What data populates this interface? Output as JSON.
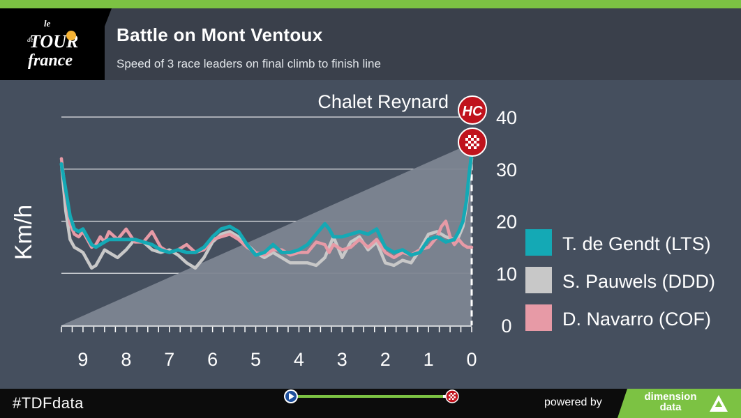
{
  "header": {
    "title": "Battle on Mont Ventoux",
    "subtitle": "Speed of 3 race leaders on final climb to finish line",
    "logo_text": "le Tour de France"
  },
  "footer": {
    "hashtag": "#TDFdata",
    "powered_by": "powered by",
    "brand_line1": "dimension",
    "brand_line2": "data"
  },
  "colors": {
    "accent_green": "#7cc243",
    "teal": "#14a9b5",
    "grey": "#c8c8c8",
    "pink": "#e79aa6",
    "elevation": "#7d8591",
    "marker_red": "#c0131d"
  },
  "chart_data": {
    "type": "line",
    "title": "Battle on Mont Ventoux",
    "ylabel": "Km/h",
    "xlabel": "",
    "xlim": [
      9.5,
      0
    ],
    "ylim": [
      0,
      40
    ],
    "x_ticks": [
      9,
      8,
      7,
      6,
      5,
      4,
      3,
      2,
      1,
      0
    ],
    "y_ticks": [
      0,
      10,
      20,
      30,
      40
    ],
    "grid": true,
    "legend_position": "right",
    "annotation": "Chalet Reynard",
    "markers": [
      "HC",
      "finish"
    ],
    "elevation_profile": {
      "x": [
        9.5,
        0
      ],
      "y": [
        0,
        35
      ]
    },
    "series": [
      {
        "name": "T. de Gendt (LTS)",
        "color": "#14a9b5",
        "x": [
          9.5,
          9.4,
          9.3,
          9.2,
          9.1,
          9.0,
          8.9,
          8.8,
          8.7,
          8.6,
          8.5,
          8.4,
          8.2,
          8.0,
          7.8,
          7.6,
          7.4,
          7.2,
          7.0,
          6.8,
          6.6,
          6.4,
          6.2,
          6.0,
          5.8,
          5.6,
          5.4,
          5.2,
          5.0,
          4.8,
          4.6,
          4.4,
          4.2,
          4.0,
          3.8,
          3.6,
          3.4,
          3.3,
          3.2,
          3.0,
          2.8,
          2.6,
          2.4,
          2.2,
          2.0,
          1.8,
          1.6,
          1.4,
          1.2,
          1.0,
          0.8,
          0.6,
          0.4,
          0.3,
          0.2,
          0.12,
          0.06,
          0
        ],
        "y": [
          31,
          26,
          21,
          18.5,
          18,
          18.5,
          17,
          15.5,
          15,
          15.5,
          16,
          16.5,
          16.5,
          16.5,
          16.5,
          16,
          15.5,
          14.5,
          14,
          14.5,
          14,
          14,
          15,
          17,
          18.5,
          19,
          18,
          15.5,
          13.5,
          14,
          15.5,
          14,
          14,
          14.5,
          15.5,
          17.5,
          19.5,
          18.5,
          17,
          17,
          17.5,
          18,
          17.5,
          18.5,
          15,
          14,
          14.5,
          13.5,
          14,
          16.5,
          17,
          16,
          16.5,
          18,
          20,
          24,
          29,
          33
        ]
      },
      {
        "name": "S. Pauwels (DDD)",
        "color": "#c8c8c8",
        "x": [
          9.5,
          9.4,
          9.3,
          9.2,
          9.1,
          9.0,
          8.9,
          8.8,
          8.7,
          8.6,
          8.5,
          8.4,
          8.2,
          8.0,
          7.8,
          7.6,
          7.4,
          7.2,
          7.0,
          6.8,
          6.6,
          6.4,
          6.2,
          6.0,
          5.8,
          5.6,
          5.4,
          5.2,
          5.0,
          4.8,
          4.6,
          4.4,
          4.2,
          4.0,
          3.8,
          3.6,
          3.4,
          3.3,
          3.2,
          3.0,
          2.8,
          2.6,
          2.4,
          2.2,
          2.0,
          1.8,
          1.6,
          1.4,
          1.2,
          1.0,
          0.8,
          0.6,
          0.4,
          0.3,
          0.2,
          0.12,
          0.06,
          0
        ],
        "y": [
          31,
          22,
          16.5,
          15,
          14.5,
          14,
          12.5,
          11,
          11.5,
          13,
          14.5,
          14,
          13,
          14.5,
          16.5,
          16,
          14.5,
          14,
          14.5,
          13.5,
          12,
          11,
          13,
          16,
          17.5,
          18,
          17,
          15.5,
          14,
          13,
          14,
          13,
          12,
          12,
          12,
          11.5,
          13,
          15,
          17,
          13,
          16,
          17,
          14.5,
          16,
          12,
          11.5,
          12.5,
          12,
          14.5,
          17.5,
          18,
          17,
          16.5,
          17,
          19,
          23,
          28,
          32
        ]
      },
      {
        "name": "D. Navarro (COF)",
        "color": "#e79aa6",
        "x": [
          9.5,
          9.4,
          9.3,
          9.2,
          9.1,
          9.0,
          8.9,
          8.8,
          8.7,
          8.6,
          8.5,
          8.4,
          8.2,
          8.0,
          7.8,
          7.6,
          7.4,
          7.2,
          7.0,
          6.8,
          6.6,
          6.4,
          6.2,
          6.0,
          5.8,
          5.6,
          5.4,
          5.2,
          5.0,
          4.8,
          4.6,
          4.4,
          4.2,
          4.0,
          3.8,
          3.6,
          3.4,
          3.3,
          3.2,
          3.0,
          2.8,
          2.6,
          2.4,
          2.2,
          2.0,
          1.8,
          1.6,
          1.4,
          1.2,
          1.0,
          0.8,
          0.7,
          0.6,
          0.5,
          0.4,
          0.3,
          0.2,
          0.1,
          0
        ],
        "y": [
          32,
          25,
          19.5,
          17.5,
          17,
          18,
          16.5,
          15,
          15.5,
          17,
          16,
          18,
          16.5,
          18.5,
          16,
          16,
          18,
          15,
          14,
          14.5,
          15.5,
          14,
          14.5,
          16.5,
          17,
          17.5,
          16.5,
          15,
          14,
          13.5,
          14.5,
          14.5,
          13.5,
          14,
          14,
          16,
          15.5,
          14,
          15.5,
          14.5,
          15,
          16.5,
          15,
          16.5,
          14,
          13,
          14,
          13.5,
          14.5,
          15,
          17,
          19,
          20,
          17,
          15.5,
          16.5,
          15.5,
          15,
          15
        ]
      }
    ]
  }
}
